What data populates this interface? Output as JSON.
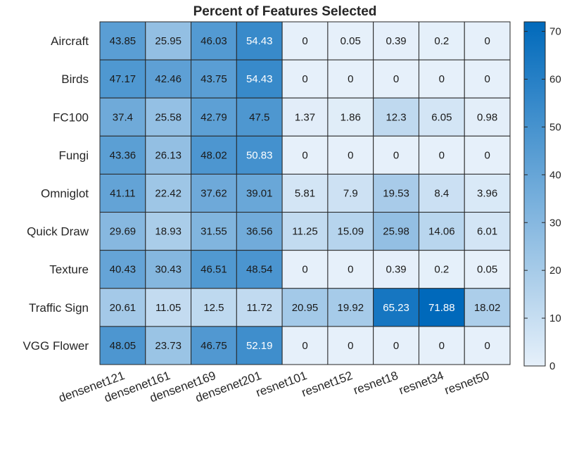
{
  "chart_data": {
    "type": "heatmap",
    "title": "Percent of Features Selected",
    "rows": [
      "Aircraft",
      "Birds",
      "FC100",
      "Fungi",
      "Omniglot",
      "Quick Draw",
      "Texture",
      "Traffic Sign",
      "VGG Flower"
    ],
    "columns": [
      "densenet121",
      "densenet161",
      "densenet169",
      "densenet201",
      "resnet101",
      "resnet152",
      "resnet18",
      "resnet34",
      "resnet50"
    ],
    "values": [
      [
        43.85,
        25.95,
        46.03,
        54.43,
        0,
        0.05,
        0.39,
        0.2,
        0
      ],
      [
        47.17,
        42.46,
        43.75,
        54.43,
        0,
        0,
        0,
        0,
        0
      ],
      [
        37.4,
        25.58,
        42.79,
        47.5,
        1.37,
        1.86,
        12.3,
        6.05,
        0.98
      ],
      [
        43.36,
        26.13,
        48.02,
        50.83,
        0,
        0,
        0,
        0,
        0
      ],
      [
        41.11,
        22.42,
        37.62,
        39.01,
        5.81,
        7.9,
        19.53,
        8.4,
        3.96
      ],
      [
        29.69,
        18.93,
        31.55,
        36.56,
        11.25,
        15.09,
        25.98,
        14.06,
        6.01
      ],
      [
        40.43,
        30.43,
        46.51,
        48.54,
        0,
        0,
        0.39,
        0.2,
        0.05
      ],
      [
        20.61,
        11.05,
        12.5,
        11.72,
        20.95,
        19.92,
        65.23,
        71.88,
        18.02
      ],
      [
        48.05,
        23.73,
        46.75,
        52.19,
        0,
        0,
        0,
        0,
        0
      ]
    ],
    "colorbar": {
      "min": 0,
      "max": 72,
      "ticks": [
        0,
        10,
        20,
        30,
        40,
        50,
        60,
        70
      ]
    },
    "colormap": {
      "low": "#e6f0fa",
      "high": "#0069bb"
    },
    "grid": true
  }
}
